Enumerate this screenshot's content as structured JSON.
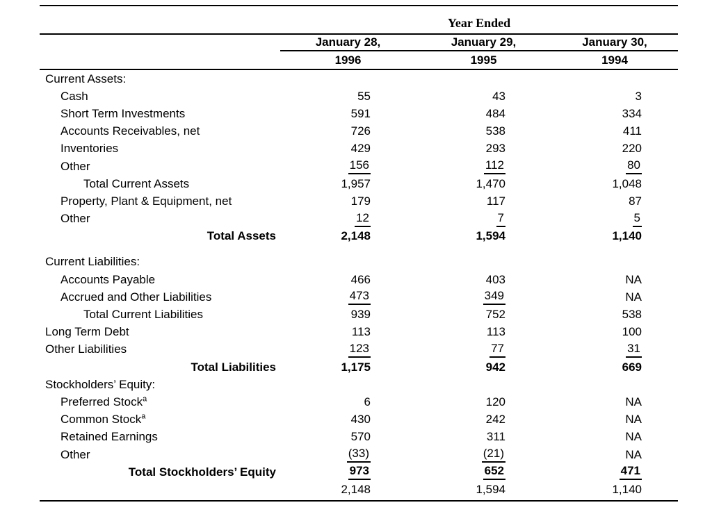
{
  "table": {
    "header": {
      "year_ended": "Year Ended",
      "columns": [
        {
          "date": "January 28,",
          "year": "1996"
        },
        {
          "date": "January 29,",
          "year": "1995"
        },
        {
          "date": "January 30,",
          "year": "1994"
        }
      ]
    },
    "rows": [
      {
        "label": "Current Assets:",
        "indent": 0
      },
      {
        "label": "Cash",
        "indent": 1,
        "values": [
          "55",
          "43",
          "3"
        ]
      },
      {
        "label": "Short Term Investments",
        "indent": 1,
        "values": [
          "591",
          "484",
          "334"
        ]
      },
      {
        "label": "Accounts Receivables, net",
        "indent": 1,
        "values": [
          "726",
          "538",
          "411"
        ]
      },
      {
        "label": "Inventories",
        "indent": 1,
        "values": [
          "429",
          "293",
          "220"
        ]
      },
      {
        "label": "Other",
        "indent": 1,
        "values": [
          "156",
          "112",
          "80"
        ],
        "underline": [
          true,
          true,
          true
        ]
      },
      {
        "label": "Total Current Assets",
        "indent": 2,
        "values": [
          "1,957",
          "1,470",
          "1,048"
        ]
      },
      {
        "label": "Property, Plant & Equipment, net",
        "indent": 1,
        "values": [
          "179",
          "117",
          "87"
        ]
      },
      {
        "label": "Other",
        "indent": 1,
        "values": [
          "12",
          "7",
          "5"
        ],
        "underline": [
          true,
          true,
          true
        ]
      },
      {
        "label": "Total Assets",
        "total": true,
        "bold": true,
        "values": [
          "2,148",
          "1,594",
          "1,140"
        ]
      },
      {
        "spacer": true
      },
      {
        "label": "Current Liabilities:",
        "indent": 0
      },
      {
        "label": "Accounts Payable",
        "indent": 1,
        "values": [
          "466",
          "403",
          "NA"
        ]
      },
      {
        "label": "Accrued and Other Liabilities",
        "indent": 1,
        "values": [
          "473",
          "349",
          "NA"
        ],
        "underline": [
          true,
          true,
          false
        ]
      },
      {
        "label": "Total Current Liabilities",
        "indent": 2,
        "values": [
          "939",
          "752",
          "538"
        ]
      },
      {
        "label": "Long Term Debt",
        "indent": 0,
        "values": [
          "113",
          "113",
          "100"
        ]
      },
      {
        "label": "Other Liabilities",
        "indent": 0,
        "values": [
          "123",
          "77",
          "31"
        ],
        "underline": [
          true,
          true,
          true
        ]
      },
      {
        "label": "Total Liabilities",
        "total": true,
        "bold": true,
        "values": [
          "1,175",
          "942",
          "669"
        ]
      },
      {
        "label": "Stockholders’ Equity:",
        "indent": 0
      },
      {
        "label": "Preferred Stock",
        "sup": "a",
        "indent": 1,
        "values": [
          "6",
          "120",
          "NA"
        ]
      },
      {
        "label": "Common Stock",
        "sup": "a",
        "indent": 1,
        "values": [
          "430",
          "242",
          "NA"
        ]
      },
      {
        "label": "Retained Earnings",
        "indent": 1,
        "values": [
          "570",
          "311",
          "NA"
        ]
      },
      {
        "label": "Other",
        "indent": 1,
        "values": [
          "(33)",
          "(21)",
          "NA"
        ],
        "underline": [
          true,
          true,
          false
        ]
      },
      {
        "label": "Total Stockholders’ Equity",
        "total": true,
        "bold": true,
        "values": [
          "973",
          "652",
          "471"
        ],
        "underline": [
          true,
          true,
          true
        ]
      },
      {
        "label": "",
        "values": [
          "2,148",
          "1,594",
          "1,140"
        ]
      }
    ]
  }
}
